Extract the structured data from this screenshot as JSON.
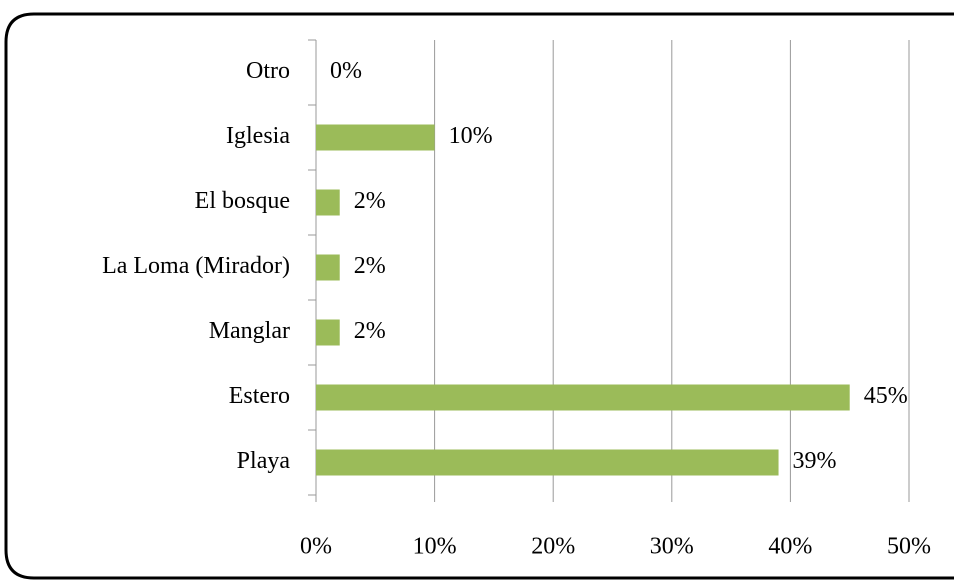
{
  "chart_data": {
    "type": "bar",
    "orientation": "horizontal",
    "categories": [
      "Otro",
      "Iglesia",
      "El bosque",
      "La Loma (Mirador)",
      "Manglar",
      "Estero",
      "Playa"
    ],
    "values": [
      0,
      10,
      2,
      2,
      2,
      45,
      39
    ],
    "value_labels": [
      "0%",
      "10%",
      "2%",
      "2%",
      "2%",
      "45%",
      "39%"
    ],
    "color": "#9bbb59",
    "xlim": [
      0,
      50
    ],
    "xticks": [
      {
        "value": 0,
        "label": "0%"
      },
      {
        "value": 10,
        "label": "10%"
      },
      {
        "value": 20,
        "label": "20%"
      },
      {
        "value": 30,
        "label": "30%"
      },
      {
        "value": 40,
        "label": "40%"
      },
      {
        "value": 50,
        "label": "50%"
      }
    ],
    "grid": true
  }
}
